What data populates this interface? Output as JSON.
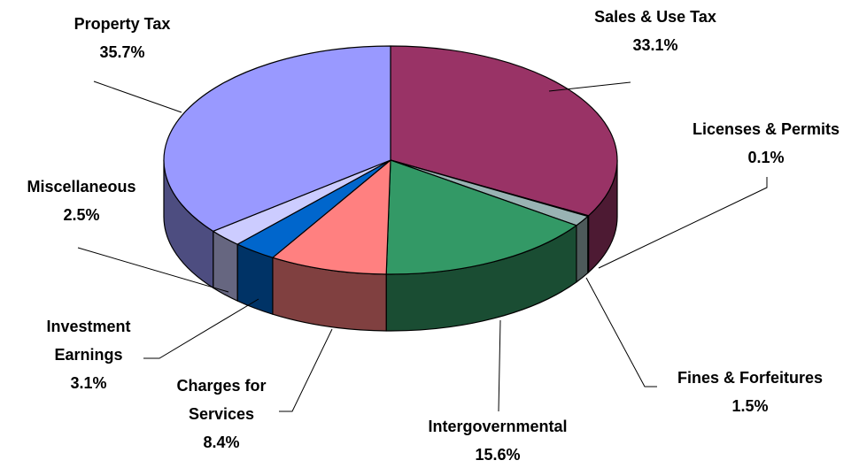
{
  "chart_data": {
    "type": "pie3d",
    "categories": [
      "Sales & Use Tax",
      "Licenses & Permits",
      "Fines & Forfeitures",
      "Intergovernmental",
      "Charges for Services",
      "Investment Earnings",
      "Miscellaneous",
      "Property Tax"
    ],
    "values": [
      33.1,
      0.1,
      1.5,
      15.6,
      8.4,
      3.1,
      2.5,
      35.7
    ],
    "value_labels": [
      "33.1%",
      "0.1%",
      "1.5%",
      "15.6%",
      "8.4%",
      "3.1%",
      "2.5%",
      "35.7%"
    ],
    "colors": [
      "#993366",
      "#ccffff",
      "#99b3b3",
      "#339966",
      "#ff8080",
      "#0066cc",
      "#ccccff",
      "#9999ff"
    ]
  }
}
